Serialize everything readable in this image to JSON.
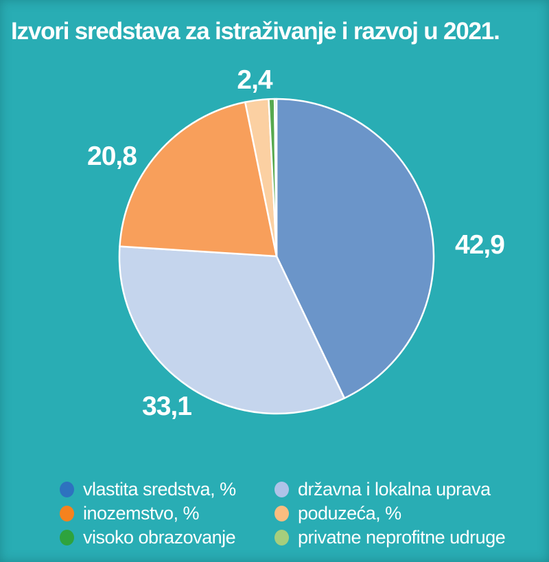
{
  "title": "Izvori sredstava za istraživanje i razvoj u 2021.",
  "colors": {
    "background": "#29ADB4",
    "text": "#FFFFFF",
    "slice_border": "#FFFFFF"
  },
  "chart_data": {
    "type": "pie",
    "title": "Izvori sredstava za istraživanje i razvoj u 2021.",
    "unit": "%",
    "start_angle": "12 o'clock",
    "direction": "clockwise",
    "slices": [
      {
        "label": "vlastita sredstva, %",
        "value": 42.9,
        "display_value": "42,9",
        "color": "#6B95C9",
        "legend_color": "#2E72BF"
      },
      {
        "label": "državna i lokalna uprava",
        "value": 33.1,
        "display_value": "33,1",
        "color": "#C5D5ED",
        "legend_color": "#AFC3E8"
      },
      {
        "label": "inozemstvo, %",
        "value": 20.8,
        "display_value": "20,8",
        "color": "#F89F5B",
        "legend_color": "#F5821E"
      },
      {
        "label": "poduzeća, %",
        "value": 2.4,
        "display_value": "2,4",
        "color": "#FBD0A2",
        "legend_color": "#FBBD80"
      },
      {
        "label": "visoko obrazovanje",
        "value": 0.6,
        "display_value": "",
        "color": "#57A94F",
        "legend_color": "#2EA33D"
      },
      {
        "label": "privatne neprofitne udruge",
        "value": 0.2,
        "display_value": "",
        "color": "#A8CE81",
        "legend_color": "#A6CE7D"
      }
    ]
  },
  "legend": {
    "items": [
      {
        "label": "vlastita sredstva, %",
        "color": "#2E72BF"
      },
      {
        "label": "inozemstvo, %",
        "color": "#F5821E"
      },
      {
        "label": "visoko obrazovanje",
        "color": "#2EA33D"
      },
      {
        "label": "državna i lokalna uprava",
        "color": "#AFC3E8"
      },
      {
        "label": "poduzeća, %",
        "color": "#FBBD80"
      },
      {
        "label": "privatne neprofitne udruge",
        "color": "#A6CE7D"
      }
    ]
  }
}
